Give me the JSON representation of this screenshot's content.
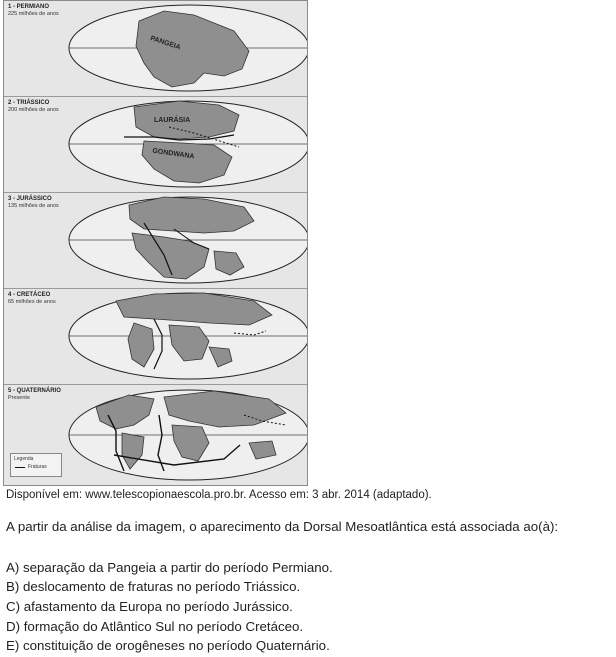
{
  "figure": {
    "panels": [
      {
        "label": "1 - PERMIANO",
        "sub": "225 milhões de anos",
        "map_texts": [
          "PANGEIA"
        ]
      },
      {
        "label": "2 - TRIÁSSICO",
        "sub": "200 milhões de anos",
        "map_texts": [
          "LAURÁSIA",
          "GONDWANA"
        ]
      },
      {
        "label": "3 - JURÁSSICO",
        "sub": "135 milhões de anos",
        "map_texts": []
      },
      {
        "label": "4 - CRETÁCEO",
        "sub": "65 milhões de anos",
        "map_texts": []
      },
      {
        "label": "5 - QUATERNÁRIO",
        "sub": "Presente",
        "map_texts": []
      }
    ],
    "legend": {
      "title": "Legenda",
      "item": "Fraturas"
    }
  },
  "source": "Disponível em: www.telescopionaescola.pro.br. Acesso em: 3 abr. 2014 (adaptado).",
  "question": "A partir da análise da imagem, o aparecimento da Dorsal Mesoatlântica está associada ao(à):",
  "options": [
    "A) separação da Pangeia a partir do período Permiano.",
    "B) deslocamento de fraturas no período Triássico.",
    "C) afastamento da Europa no período Jurássico.",
    "D) formação do Atlântico Sul no período Cretáceo.",
    "E) constituição de orogêneses no período Quaternário."
  ]
}
